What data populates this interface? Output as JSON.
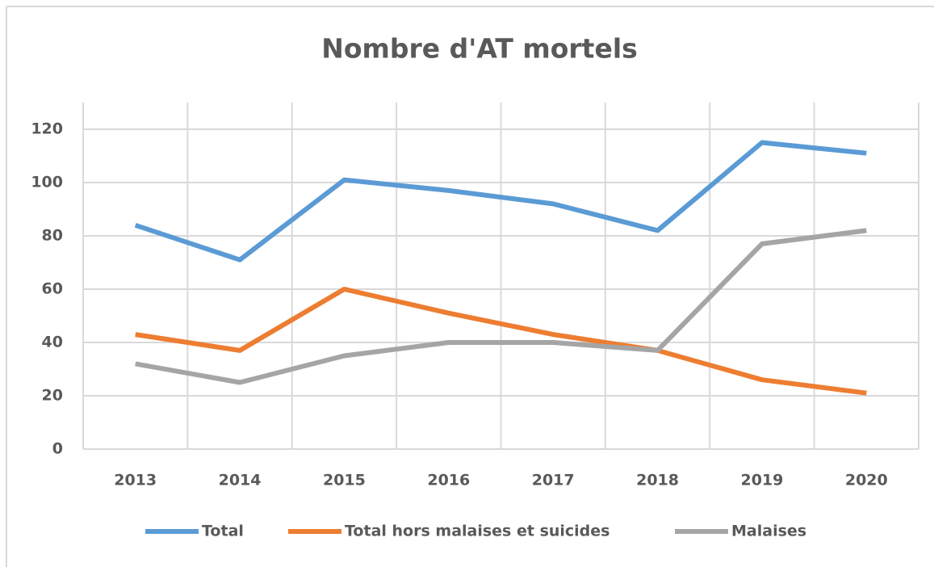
{
  "chart_data": {
    "type": "line",
    "title": "Nombre d'AT mortels",
    "categories": [
      "2013",
      "2014",
      "2015",
      "2016",
      "2017",
      "2018",
      "2019",
      "2020"
    ],
    "series": [
      {
        "name": "Total",
        "color": "#5b9bd5",
        "values": [
          84,
          71,
          101,
          97,
          92,
          82,
          115,
          111
        ]
      },
      {
        "name": "Total hors malaises et suicides",
        "color": "#ed7d31",
        "values": [
          43,
          37,
          60,
          51,
          43,
          37,
          26,
          21
        ]
      },
      {
        "name": "Malaises",
        "color": "#a5a5a5",
        "values": [
          32,
          25,
          35,
          40,
          40,
          37,
          77,
          82
        ]
      }
    ],
    "ylim": [
      0,
      130
    ],
    "yticks": [
      0,
      20,
      40,
      60,
      80,
      100,
      120
    ],
    "grid": true,
    "legend": "bottom"
  }
}
